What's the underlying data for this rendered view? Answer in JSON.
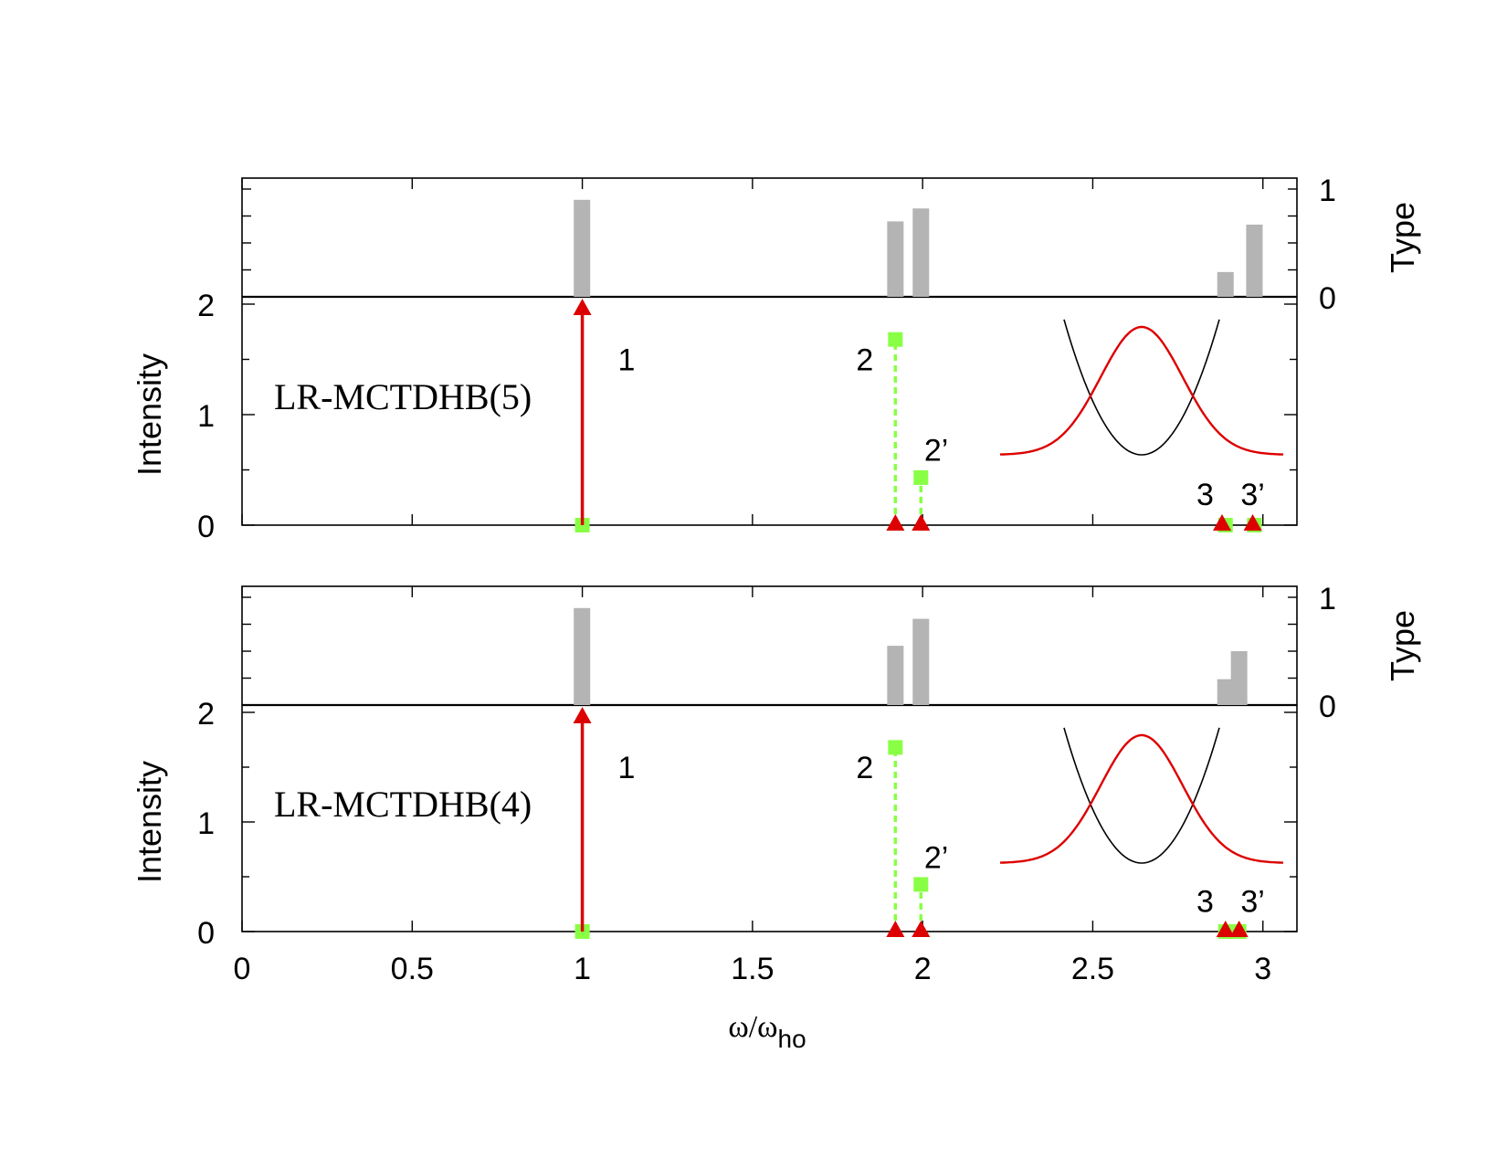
{
  "chart_data": [
    {
      "panel": "top",
      "method_label": "LR-MCTDHB(5)",
      "x_range": [
        0,
        3.1
      ],
      "type_axis": {
        "label": "Type",
        "ylim": [
          0,
          1
        ],
        "ticks": [
          "0",
          "1"
        ],
        "bars": [
          {
            "x": 0.999,
            "value": 0.9
          },
          {
            "x": 1.92,
            "value": 0.7
          },
          {
            "x": 1.995,
            "value": 0.82
          },
          {
            "x": 2.89,
            "value": 0.23
          },
          {
            "x": 2.975,
            "value": 0.67
          }
        ]
      },
      "intensity_axis": {
        "label": "Intensity",
        "ylim": [
          0,
          2
        ],
        "ticks": [
          "0",
          "1",
          "2"
        ],
        "red_series": [
          {
            "x": 1.0,
            "value": 1.95
          },
          {
            "x": 1.92,
            "value": 0
          },
          {
            "x": 1.995,
            "value": 0
          },
          {
            "x": 2.88,
            "value": 0
          },
          {
            "x": 2.97,
            "value": 0
          }
        ],
        "green_series": [
          {
            "x": 1.0,
            "value": 0
          },
          {
            "x": 1.92,
            "value": 1.68
          },
          {
            "x": 1.995,
            "value": 0.43
          },
          {
            "x": 2.89,
            "value": 0
          },
          {
            "x": 2.975,
            "value": 0
          }
        ],
        "peak_labels": [
          {
            "text": "1",
            "x": 1.13,
            "value": 1.5
          },
          {
            "text": "2",
            "x": 1.83,
            "value": 1.5
          },
          {
            "text": "2’",
            "x": 2.04,
            "value": 0.68
          },
          {
            "text": "3",
            "x": 2.83,
            "value": 0.28
          },
          {
            "text": "3’",
            "x": 2.97,
            "value": 0.28
          }
        ]
      }
    },
    {
      "panel": "bottom",
      "method_label": "LR-MCTDHB(4)",
      "x_range": [
        0,
        3.1
      ],
      "type_axis": {
        "label": "Type",
        "ylim": [
          0,
          1
        ],
        "ticks": [
          "0",
          "1"
        ],
        "bars": [
          {
            "x": 0.999,
            "value": 0.9
          },
          {
            "x": 1.92,
            "value": 0.55
          },
          {
            "x": 1.995,
            "value": 0.8
          },
          {
            "x": 2.89,
            "value": 0.24
          },
          {
            "x": 2.93,
            "value": 0.5
          }
        ]
      },
      "intensity_axis": {
        "label": "Intensity",
        "ylim": [
          0,
          2
        ],
        "ticks": [
          "0",
          "1",
          "2"
        ],
        "red_series": [
          {
            "x": 1.0,
            "value": 1.95
          },
          {
            "x": 1.92,
            "value": 0
          },
          {
            "x": 1.995,
            "value": 0
          },
          {
            "x": 2.89,
            "value": 0
          },
          {
            "x": 2.93,
            "value": 0
          }
        ],
        "green_series": [
          {
            "x": 1.0,
            "value": 0
          },
          {
            "x": 1.92,
            "value": 1.68
          },
          {
            "x": 1.995,
            "value": 0.43
          },
          {
            "x": 2.89,
            "value": 0
          },
          {
            "x": 2.93,
            "value": 0
          }
        ],
        "peak_labels": [
          {
            "text": "1",
            "x": 1.13,
            "value": 1.5
          },
          {
            "text": "2",
            "x": 1.83,
            "value": 1.5
          },
          {
            "text": "2’",
            "x": 2.04,
            "value": 0.68
          },
          {
            "text": "3",
            "x": 2.83,
            "value": 0.28
          },
          {
            "text": "3’",
            "x": 2.97,
            "value": 0.28
          }
        ]
      }
    }
  ],
  "x_axis": {
    "label": "ω/ω",
    "label_subscript": "ho",
    "ticks": [
      {
        "value": 0,
        "label": "0"
      },
      {
        "value": 0.5,
        "label": "0.5"
      },
      {
        "value": 1,
        "label": "1"
      },
      {
        "value": 1.5,
        "label": "1.5"
      },
      {
        "value": 2,
        "label": "2"
      },
      {
        "value": 2.5,
        "label": "2.5"
      },
      {
        "value": 3,
        "label": "3"
      }
    ]
  },
  "colors": {
    "red": "#dd0000",
    "green": "#88ff44",
    "bar": "#b4b4b4",
    "axis": "#000000"
  }
}
